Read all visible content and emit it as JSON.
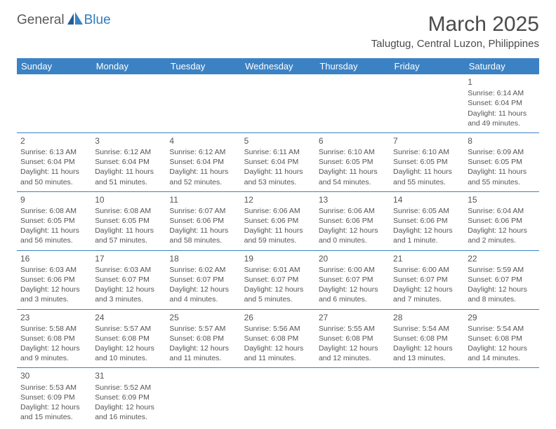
{
  "logo": {
    "text1": "General",
    "text2": "Blue"
  },
  "title": "March 2025",
  "location": "Talugtug, Central Luzon, Philippines",
  "header_bg": "#3b82c4",
  "header_fg": "#ffffff",
  "border_color": "#3b82c4",
  "text_color": "#555555",
  "daysOfWeek": [
    "Sunday",
    "Monday",
    "Tuesday",
    "Wednesday",
    "Thursday",
    "Friday",
    "Saturday"
  ],
  "weeks": [
    [
      null,
      null,
      null,
      null,
      null,
      null,
      {
        "n": "1",
        "sr": "Sunrise: 6:14 AM",
        "ss": "Sunset: 6:04 PM",
        "dl": "Daylight: 11 hours and 49 minutes."
      }
    ],
    [
      {
        "n": "2",
        "sr": "Sunrise: 6:13 AM",
        "ss": "Sunset: 6:04 PM",
        "dl": "Daylight: 11 hours and 50 minutes."
      },
      {
        "n": "3",
        "sr": "Sunrise: 6:12 AM",
        "ss": "Sunset: 6:04 PM",
        "dl": "Daylight: 11 hours and 51 minutes."
      },
      {
        "n": "4",
        "sr": "Sunrise: 6:12 AM",
        "ss": "Sunset: 6:04 PM",
        "dl": "Daylight: 11 hours and 52 minutes."
      },
      {
        "n": "5",
        "sr": "Sunrise: 6:11 AM",
        "ss": "Sunset: 6:04 PM",
        "dl": "Daylight: 11 hours and 53 minutes."
      },
      {
        "n": "6",
        "sr": "Sunrise: 6:10 AM",
        "ss": "Sunset: 6:05 PM",
        "dl": "Daylight: 11 hours and 54 minutes."
      },
      {
        "n": "7",
        "sr": "Sunrise: 6:10 AM",
        "ss": "Sunset: 6:05 PM",
        "dl": "Daylight: 11 hours and 55 minutes."
      },
      {
        "n": "8",
        "sr": "Sunrise: 6:09 AM",
        "ss": "Sunset: 6:05 PM",
        "dl": "Daylight: 11 hours and 55 minutes."
      }
    ],
    [
      {
        "n": "9",
        "sr": "Sunrise: 6:08 AM",
        "ss": "Sunset: 6:05 PM",
        "dl": "Daylight: 11 hours and 56 minutes."
      },
      {
        "n": "10",
        "sr": "Sunrise: 6:08 AM",
        "ss": "Sunset: 6:05 PM",
        "dl": "Daylight: 11 hours and 57 minutes."
      },
      {
        "n": "11",
        "sr": "Sunrise: 6:07 AM",
        "ss": "Sunset: 6:06 PM",
        "dl": "Daylight: 11 hours and 58 minutes."
      },
      {
        "n": "12",
        "sr": "Sunrise: 6:06 AM",
        "ss": "Sunset: 6:06 PM",
        "dl": "Daylight: 11 hours and 59 minutes."
      },
      {
        "n": "13",
        "sr": "Sunrise: 6:06 AM",
        "ss": "Sunset: 6:06 PM",
        "dl": "Daylight: 12 hours and 0 minutes."
      },
      {
        "n": "14",
        "sr": "Sunrise: 6:05 AM",
        "ss": "Sunset: 6:06 PM",
        "dl": "Daylight: 12 hours and 1 minute."
      },
      {
        "n": "15",
        "sr": "Sunrise: 6:04 AM",
        "ss": "Sunset: 6:06 PM",
        "dl": "Daylight: 12 hours and 2 minutes."
      }
    ],
    [
      {
        "n": "16",
        "sr": "Sunrise: 6:03 AM",
        "ss": "Sunset: 6:06 PM",
        "dl": "Daylight: 12 hours and 3 minutes."
      },
      {
        "n": "17",
        "sr": "Sunrise: 6:03 AM",
        "ss": "Sunset: 6:07 PM",
        "dl": "Daylight: 12 hours and 3 minutes."
      },
      {
        "n": "18",
        "sr": "Sunrise: 6:02 AM",
        "ss": "Sunset: 6:07 PM",
        "dl": "Daylight: 12 hours and 4 minutes."
      },
      {
        "n": "19",
        "sr": "Sunrise: 6:01 AM",
        "ss": "Sunset: 6:07 PM",
        "dl": "Daylight: 12 hours and 5 minutes."
      },
      {
        "n": "20",
        "sr": "Sunrise: 6:00 AM",
        "ss": "Sunset: 6:07 PM",
        "dl": "Daylight: 12 hours and 6 minutes."
      },
      {
        "n": "21",
        "sr": "Sunrise: 6:00 AM",
        "ss": "Sunset: 6:07 PM",
        "dl": "Daylight: 12 hours and 7 minutes."
      },
      {
        "n": "22",
        "sr": "Sunrise: 5:59 AM",
        "ss": "Sunset: 6:07 PM",
        "dl": "Daylight: 12 hours and 8 minutes."
      }
    ],
    [
      {
        "n": "23",
        "sr": "Sunrise: 5:58 AM",
        "ss": "Sunset: 6:08 PM",
        "dl": "Daylight: 12 hours and 9 minutes."
      },
      {
        "n": "24",
        "sr": "Sunrise: 5:57 AM",
        "ss": "Sunset: 6:08 PM",
        "dl": "Daylight: 12 hours and 10 minutes."
      },
      {
        "n": "25",
        "sr": "Sunrise: 5:57 AM",
        "ss": "Sunset: 6:08 PM",
        "dl": "Daylight: 12 hours and 11 minutes."
      },
      {
        "n": "26",
        "sr": "Sunrise: 5:56 AM",
        "ss": "Sunset: 6:08 PM",
        "dl": "Daylight: 12 hours and 11 minutes."
      },
      {
        "n": "27",
        "sr": "Sunrise: 5:55 AM",
        "ss": "Sunset: 6:08 PM",
        "dl": "Daylight: 12 hours and 12 minutes."
      },
      {
        "n": "28",
        "sr": "Sunrise: 5:54 AM",
        "ss": "Sunset: 6:08 PM",
        "dl": "Daylight: 12 hours and 13 minutes."
      },
      {
        "n": "29",
        "sr": "Sunrise: 5:54 AM",
        "ss": "Sunset: 6:08 PM",
        "dl": "Daylight: 12 hours and 14 minutes."
      }
    ],
    [
      {
        "n": "30",
        "sr": "Sunrise: 5:53 AM",
        "ss": "Sunset: 6:09 PM",
        "dl": "Daylight: 12 hours and 15 minutes."
      },
      {
        "n": "31",
        "sr": "Sunrise: 5:52 AM",
        "ss": "Sunset: 6:09 PM",
        "dl": "Daylight: 12 hours and 16 minutes."
      },
      null,
      null,
      null,
      null,
      null
    ]
  ]
}
